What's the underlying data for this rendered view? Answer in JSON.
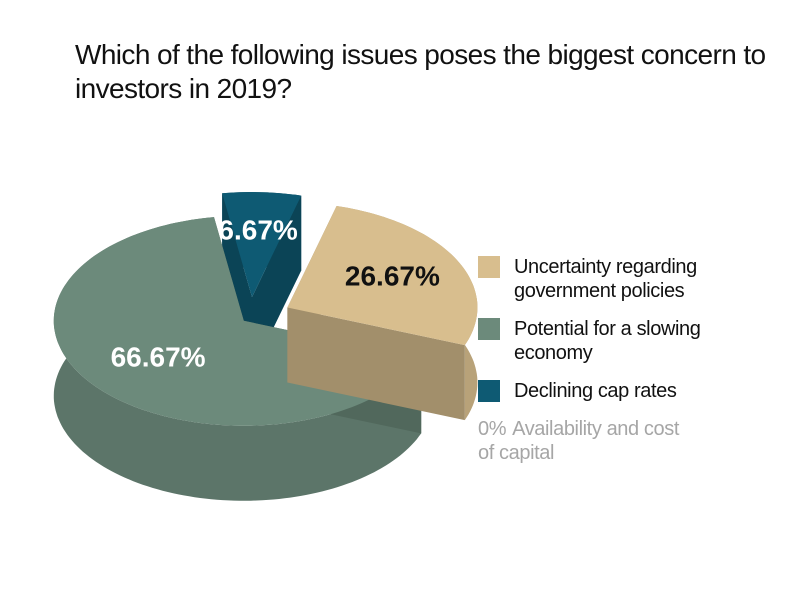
{
  "chart_data": {
    "type": "pie",
    "title": "Which of the following issues poses the biggest concern to investors in 2019?",
    "categories": [
      "Uncertainty regarding government policies",
      "Potential for a slowing economy",
      "Declining cap rates",
      "Availability and cost of capital"
    ],
    "values": [
      26.67,
      66.67,
      6.67,
      0
    ],
    "value_labels": [
      "26.67%",
      "66.67%",
      "6.67%",
      "0%"
    ],
    "colors": [
      "#d8be8e",
      "#6c8a7b",
      "#0e5a73",
      "#a6a6a6"
    ]
  }
}
